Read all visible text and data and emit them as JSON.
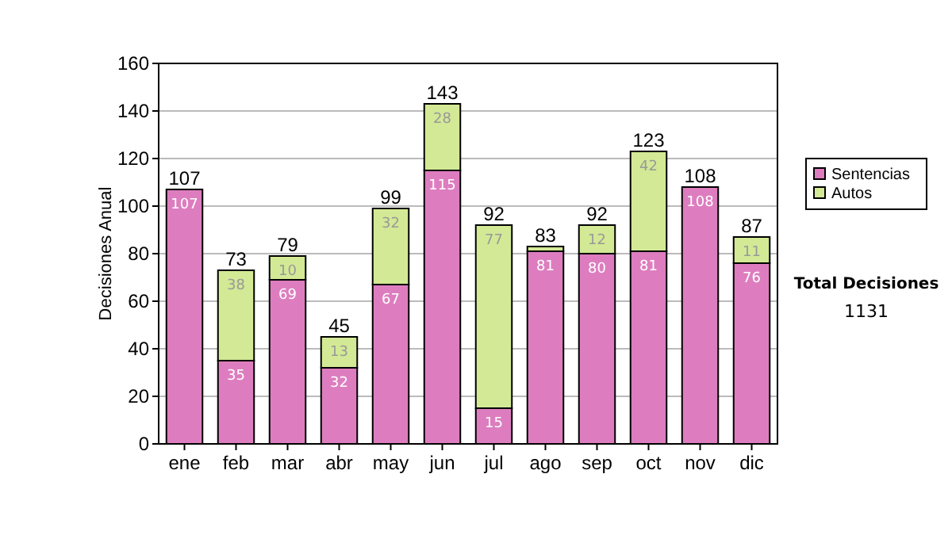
{
  "chart_data": {
    "type": "bar",
    "stacked": true,
    "ylabel": "Decisiones Anual",
    "categories": [
      "ene",
      "feb",
      "mar",
      "abr",
      "may",
      "jun",
      "jul",
      "ago",
      "sep",
      "oct",
      "nov",
      "dic"
    ],
    "series": [
      {
        "name": "Sentencias",
        "color": "#dd7dbf",
        "values": [
          107,
          35,
          69,
          32,
          67,
          115,
          15,
          81,
          80,
          81,
          108,
          76
        ],
        "value_labels": [
          "107",
          "35",
          "69",
          "32",
          "67",
          "115",
          "15",
          "81",
          "80",
          "81",
          "108",
          "76"
        ]
      },
      {
        "name": "Autos",
        "color": "#d3e995",
        "values": [
          null,
          38,
          10,
          13,
          32,
          28,
          77,
          2,
          12,
          42,
          null,
          11
        ],
        "value_labels": [
          null,
          "38",
          "10",
          "13",
          "32",
          "28",
          "77",
          null,
          "12",
          "42",
          null,
          "11"
        ]
      }
    ],
    "totals": [
      "107",
      "73",
      "79",
      "45",
      "99",
      "143",
      "92",
      "83",
      "92",
      "123",
      "108",
      "87"
    ],
    "ylim": [
      0,
      160
    ],
    "yticks": [
      0,
      20,
      40,
      60,
      80,
      100,
      120,
      140,
      160
    ],
    "grid": "y",
    "legend": "right",
    "annotations": [
      "Total Decisiones",
      "1131"
    ]
  }
}
